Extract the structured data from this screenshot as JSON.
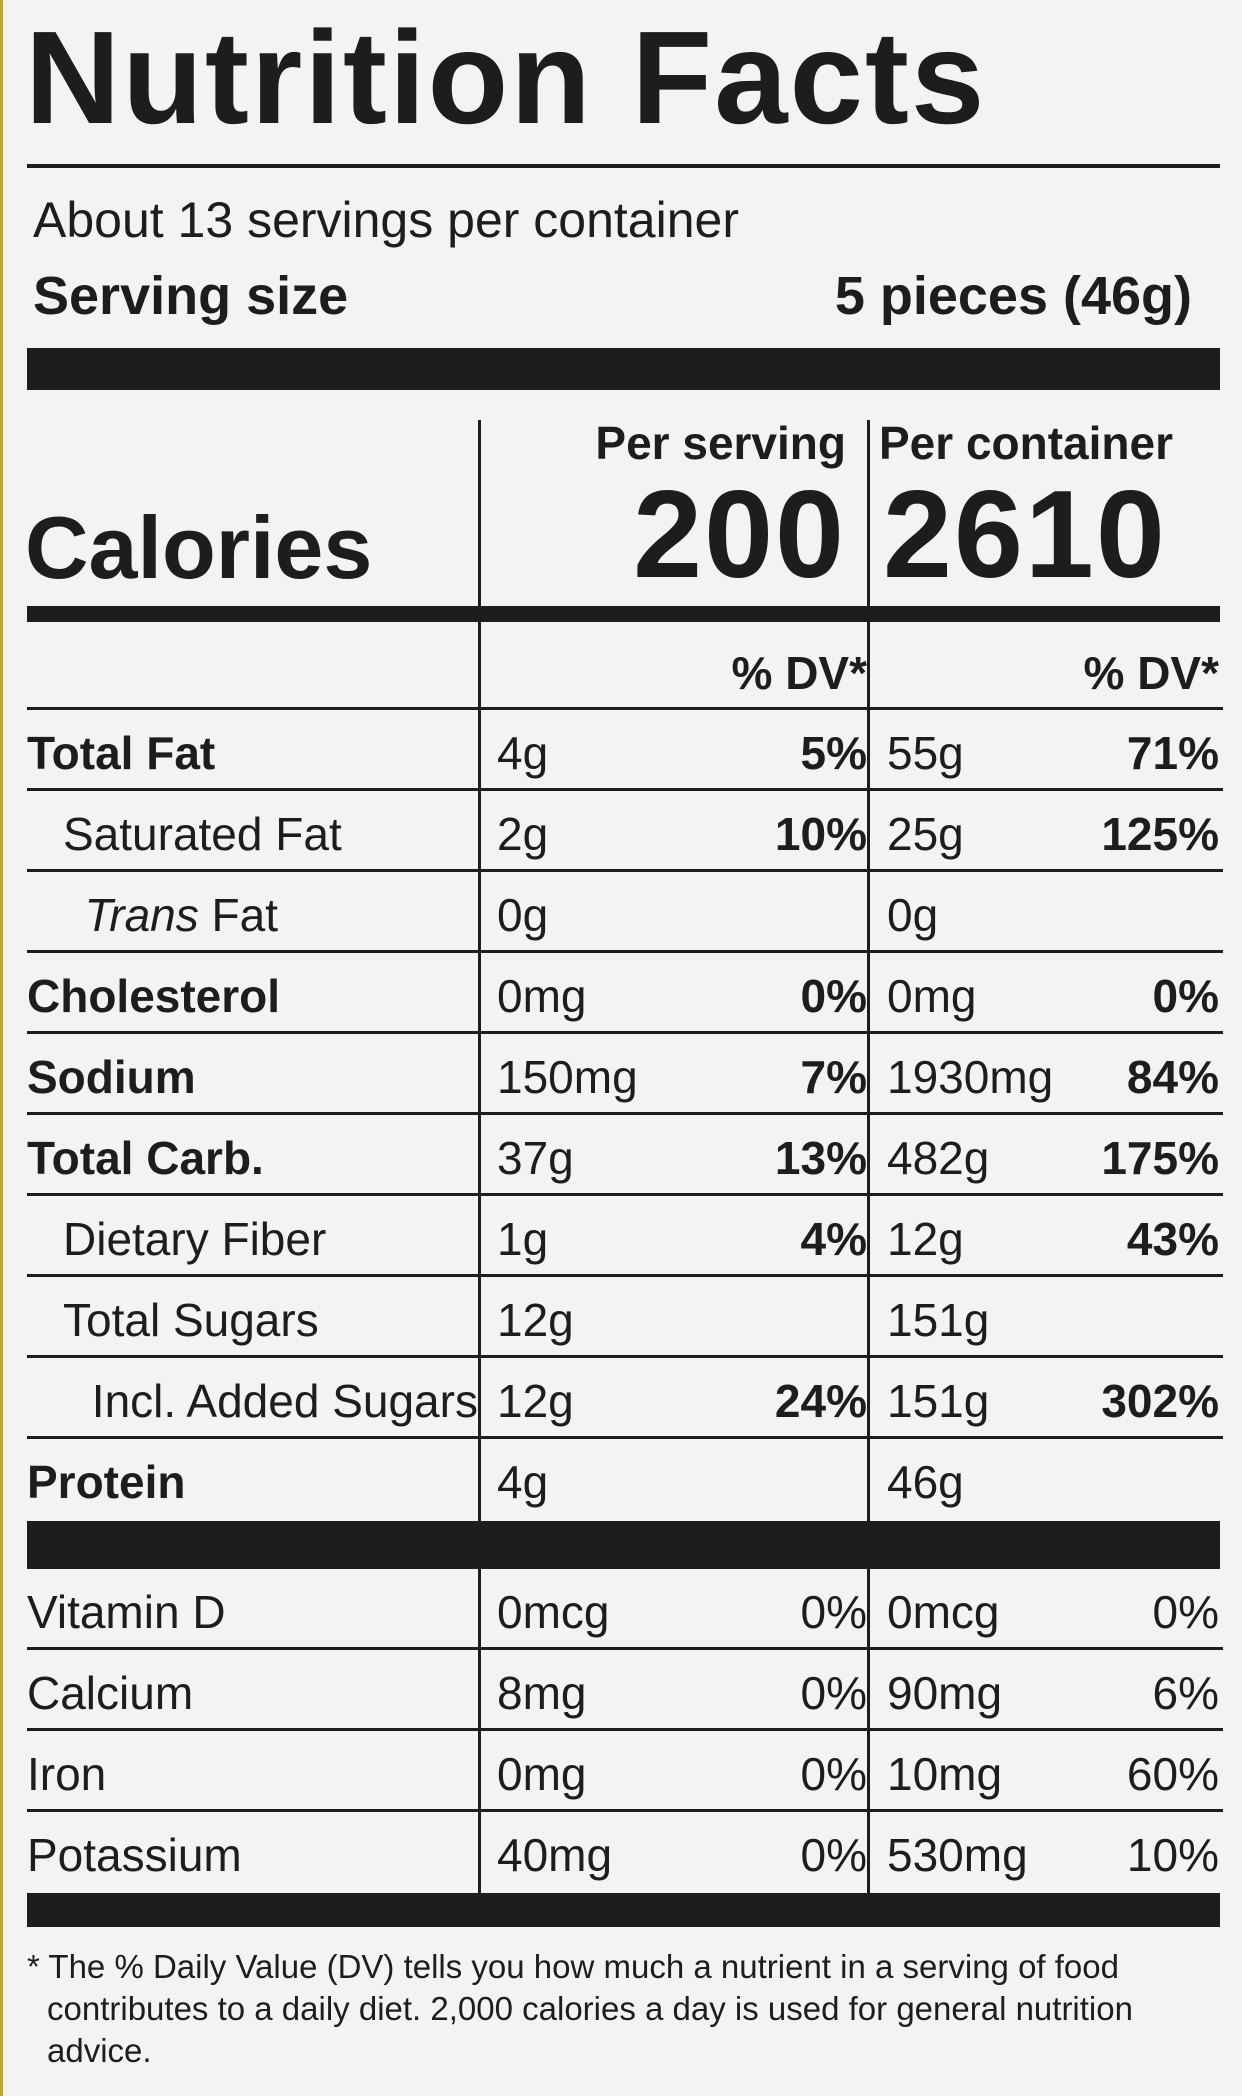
{
  "title": "Nutrition Facts",
  "servings_per_container": "About 13 servings per container",
  "serving_size_label": "Serving size",
  "serving_size_value": "5 pieces (46g)",
  "per_serving_label": "Per serving",
  "per_container_label": "Per container",
  "calories_label": "Calories",
  "calories_per_serving": "200",
  "calories_per_container": "2610",
  "dv_label": "% DV*",
  "nutrients": [
    {
      "name": "Total Fat",
      "serving_amount": "4g",
      "serving_dv": "5%",
      "container_amount": "55g",
      "container_dv": "71%",
      "bold": true,
      "indent": 0
    },
    {
      "name": "Saturated Fat",
      "serving_amount": "2g",
      "serving_dv": "10%",
      "container_amount": "25g",
      "container_dv": "125%",
      "bold": false,
      "indent": 1
    },
    {
      "name_italic": "Trans",
      "name": " Fat",
      "serving_amount": "0g",
      "serving_dv": "",
      "container_amount": "0g",
      "container_dv": "",
      "bold": false,
      "indent": 1.6
    },
    {
      "name": "Cholesterol",
      "serving_amount": "0mg",
      "serving_dv": "0%",
      "container_amount": "0mg",
      "container_dv": "0%",
      "bold": true,
      "indent": 0
    },
    {
      "name": "Sodium",
      "serving_amount": "150mg",
      "serving_dv": "7%",
      "container_amount": "1930mg",
      "container_dv": "84%",
      "bold": true,
      "indent": 0
    },
    {
      "name": "Total Carb.",
      "serving_amount": "37g",
      "serving_dv": "13%",
      "container_amount": "482g",
      "container_dv": "175%",
      "bold": true,
      "indent": 0
    },
    {
      "name": "Dietary Fiber",
      "serving_amount": "1g",
      "serving_dv": "4%",
      "container_amount": "12g",
      "container_dv": "43%",
      "bold": false,
      "indent": 1
    },
    {
      "name": "Total Sugars",
      "serving_amount": "12g",
      "serving_dv": "",
      "container_amount": "151g",
      "container_dv": "",
      "bold": false,
      "indent": 1
    },
    {
      "name": "Incl. Added Sugars",
      "serving_amount": "12g",
      "serving_dv": "24%",
      "container_amount": "151g",
      "container_dv": "302%",
      "bold": false,
      "indent": 1.8
    },
    {
      "name": "Protein",
      "serving_amount": "4g",
      "serving_dv": "",
      "container_amount": "46g",
      "container_dv": "",
      "bold": true,
      "indent": 0
    }
  ],
  "vitamins": [
    {
      "name": "Vitamin D",
      "serving_amount": "0mcg",
      "serving_dv": "0%",
      "container_amount": "0mcg",
      "container_dv": "0%"
    },
    {
      "name": "Calcium",
      "serving_amount": "8mg",
      "serving_dv": "0%",
      "container_amount": "90mg",
      "container_dv": "6%"
    },
    {
      "name": "Iron",
      "serving_amount": "0mg",
      "serving_dv": "0%",
      "container_amount": "10mg",
      "container_dv": "60%"
    },
    {
      "name": "Potassium",
      "serving_amount": "40mg",
      "serving_dv": "0%",
      "container_amount": "530mg",
      "container_dv": "10%"
    }
  ],
  "footnote": "* The % Daily Value (DV) tells you how much a nutrient in a serving of food contributes to a daily diet. 2,000 calories a day is used for general nutrition advice."
}
